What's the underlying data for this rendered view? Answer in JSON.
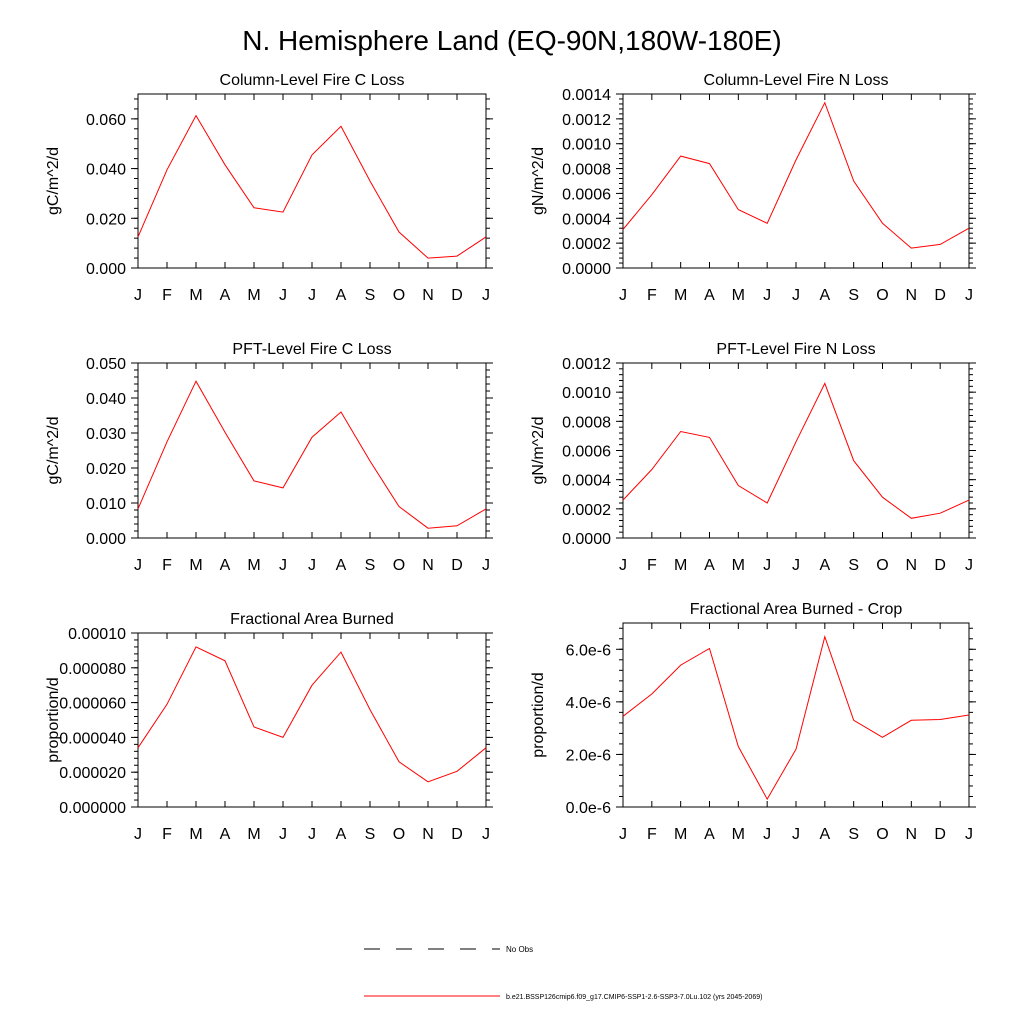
{
  "page_title": "N. Hemisphere Land (EQ-90N,180W-180E)",
  "colors": {
    "series": "#ff0000",
    "axes": "#000000",
    "obs": "#000000"
  },
  "legend": {
    "placement": "bottom-center",
    "entries": [
      {
        "label": "No Obs",
        "style": "dashed",
        "color": "#000000"
      },
      {
        "label": "b.e21.BSSP126cmip6.f09_g17.CMIP6-SSP1-2.6-SSP3-7.0Lu.102 (yrs 2045-2069)",
        "style": "solid",
        "color": "#ff0000"
      }
    ]
  },
  "chart_data": [
    {
      "type": "line",
      "title": "Column-Level Fire C Loss",
      "ylabel": "gC/m^2/d",
      "xlabel": "",
      "categories": [
        "J",
        "F",
        "M",
        "A",
        "M",
        "J",
        "J",
        "A",
        "S",
        "O",
        "N",
        "D",
        "J"
      ],
      "ylim": [
        0,
        0.07
      ],
      "yticks": [
        0,
        0.02,
        0.04,
        0.06
      ],
      "ytick_labels": [
        "0.000",
        "0.020",
        "0.040",
        "0.060"
      ],
      "grid": false,
      "series": [
        {
          "values": [
            0.0125,
            0.0395,
            0.0613,
            0.0415,
            0.0242,
            0.0225,
            0.0455,
            0.057,
            0.035,
            0.0145,
            0.004,
            0.0048,
            0.0125
          ]
        }
      ]
    },
    {
      "type": "line",
      "title": "Column-Level Fire N Loss",
      "ylabel": "gN/m^2/d",
      "xlabel": "",
      "categories": [
        "J",
        "F",
        "M",
        "A",
        "M",
        "J",
        "J",
        "A",
        "S",
        "O",
        "N",
        "D",
        "J"
      ],
      "ylim": [
        0,
        0.0014
      ],
      "yticks": [
        0,
        0.0002,
        0.0004,
        0.0006,
        0.0008,
        0.001,
        0.0012,
        0.0014
      ],
      "ytick_labels": [
        "0.0000",
        "0.0002",
        "0.0004",
        "0.0006",
        "0.0008",
        "0.0010",
        "0.0012",
        "0.0014"
      ],
      "grid": false,
      "series": [
        {
          "values": [
            0.00031,
            0.00059,
            0.0009,
            0.00084,
            0.00047,
            0.00036,
            0.00087,
            0.00133,
            0.0007,
            0.00036,
            0.00016,
            0.00019,
            0.00032
          ]
        }
      ]
    },
    {
      "type": "line",
      "title": "PFT-Level Fire C Loss",
      "ylabel": "gC/m^2/d",
      "xlabel": "",
      "categories": [
        "J",
        "F",
        "M",
        "A",
        "M",
        "J",
        "J",
        "A",
        "S",
        "O",
        "N",
        "D",
        "J"
      ],
      "ylim": [
        0,
        0.05
      ],
      "yticks": [
        0,
        0.01,
        0.02,
        0.03,
        0.04,
        0.05
      ],
      "ytick_labels": [
        "0.000",
        "0.010",
        "0.020",
        "0.030",
        "0.040",
        "0.050"
      ],
      "grid": false,
      "series": [
        {
          "values": [
            0.0083,
            0.0275,
            0.0448,
            0.0302,
            0.0163,
            0.0143,
            0.0288,
            0.036,
            0.022,
            0.009,
            0.0028,
            0.0035,
            0.0083
          ]
        }
      ]
    },
    {
      "type": "line",
      "title": "PFT-Level Fire N Loss",
      "ylabel": "gN/m^2/d",
      "xlabel": "",
      "categories": [
        "J",
        "F",
        "M",
        "A",
        "M",
        "J",
        "J",
        "A",
        "S",
        "O",
        "N",
        "D",
        "J"
      ],
      "ylim": [
        0,
        0.0012
      ],
      "yticks": [
        0,
        0.0002,
        0.0004,
        0.0006,
        0.0008,
        0.001,
        0.0012
      ],
      "ytick_labels": [
        "0.0000",
        "0.0002",
        "0.0004",
        "0.0006",
        "0.0008",
        "0.0010",
        "0.0012"
      ],
      "grid": false,
      "series": [
        {
          "values": [
            0.00026,
            0.00047,
            0.00073,
            0.00069,
            0.00036,
            0.00024,
            0.00066,
            0.00106,
            0.00053,
            0.00028,
            0.000135,
            0.00017,
            0.00026
          ]
        }
      ]
    },
    {
      "type": "line",
      "title": "Fractional Area Burned",
      "ylabel": "proportion/d",
      "xlabel": "",
      "categories": [
        "J",
        "F",
        "M",
        "A",
        "M",
        "J",
        "J",
        "A",
        "S",
        "O",
        "N",
        "D",
        "J"
      ],
      "ylim": [
        0,
        0.0001
      ],
      "yticks": [
        0,
        2e-05,
        4e-05,
        6e-05,
        8e-05,
        0.0001
      ],
      "ytick_labels": [
        "0.000000",
        "0.000020",
        "0.000040",
        "0.000060",
        "0.000080",
        "0.00010"
      ],
      "grid": false,
      "series": [
        {
          "values": [
            3.4e-05,
            5.9e-05,
            9.2e-05,
            8.4e-05,
            4.6e-05,
            4e-05,
            7e-05,
            8.9e-05,
            5.6e-05,
            2.6e-05,
            1.45e-05,
            2.05e-05,
            3.4e-05
          ]
        }
      ]
    },
    {
      "type": "line",
      "title": "Fractional Area Burned - Crop",
      "ylabel": "proportion/d",
      "xlabel": "",
      "categories": [
        "J",
        "F",
        "M",
        "A",
        "M",
        "J",
        "J",
        "A",
        "S",
        "O",
        "N",
        "D",
        "J"
      ],
      "ylim": [
        0,
        7e-06
      ],
      "yticks": [
        0,
        2e-06,
        4e-06,
        6e-06
      ],
      "ytick_labels": [
        "0.0e-6",
        "2.0e-6",
        "4.0e-6",
        "6.0e-6"
      ],
      "grid": false,
      "series": [
        {
          "values": [
            3.45e-06,
            4.3e-06,
            5.4e-06,
            6.03e-06,
            2.3e-06,
            3e-07,
            2.2e-06,
            6.48e-06,
            3.3e-06,
            2.65e-06,
            3.3e-06,
            3.33e-06,
            3.5e-06
          ]
        }
      ]
    }
  ]
}
